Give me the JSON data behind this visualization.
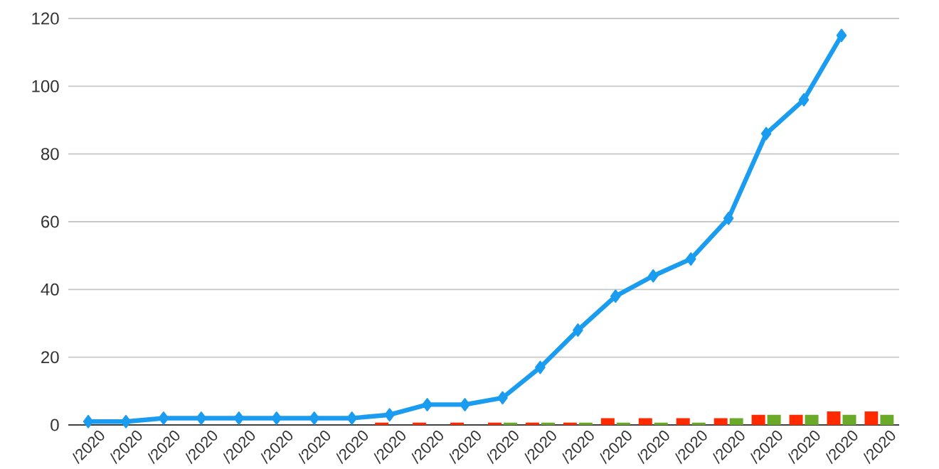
{
  "chart_data": {
    "type": "bar",
    "categories": [
      "/2020",
      "/2020",
      "/2020",
      "/2020",
      "/2020",
      "/2020",
      "/2020",
      "/2020",
      "/2020",
      "/2020",
      "/2020",
      "/2020",
      "/2020",
      "/2020",
      "/2020",
      "/2020",
      "/2020",
      "/2020",
      "/2020",
      "/2020",
      "/2020",
      "/2020"
    ],
    "series": [
      {
        "type": "line",
        "color": "#1a9cf0",
        "values": [
          1,
          1,
          2,
          2,
          2,
          2,
          2,
          2,
          3,
          6,
          6,
          8,
          17,
          28,
          38,
          44,
          49,
          61,
          86,
          96,
          115,
          null
        ]
      },
      {
        "color": "#ff2a00",
        "values": [
          null,
          null,
          null,
          null,
          null,
          null,
          null,
          null,
          0.7,
          0.7,
          0.7,
          0.7,
          0.7,
          0.7,
          2,
          2,
          2,
          2,
          3,
          3,
          4,
          4
        ]
      },
      {
        "color": "#6aaa28",
        "values": [
          null,
          null,
          null,
          null,
          null,
          null,
          null,
          null,
          null,
          null,
          null,
          0.7,
          0.7,
          0.7,
          0.7,
          0.7,
          0.7,
          2,
          3,
          3,
          3,
          3
        ]
      }
    ],
    "ylim": [
      0,
      120
    ],
    "yticks": [
      0,
      20,
      40,
      60,
      80,
      100,
      120
    ],
    "grid": "y",
    "marker": "diamond",
    "line_style": "solid"
  }
}
